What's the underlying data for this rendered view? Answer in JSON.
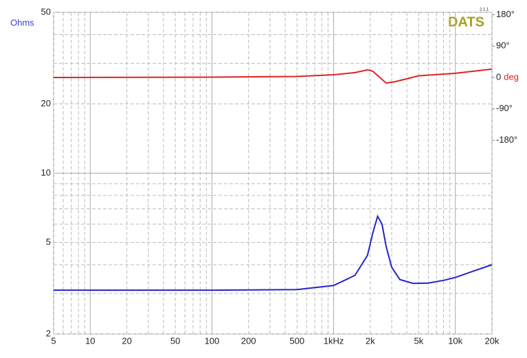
{
  "chart_data": {
    "type": "line",
    "brand": "DATS",
    "version": "2.1.1",
    "ylabel": "Ohms",
    "y2label": "deg",
    "xscale": "log",
    "yscale": "log",
    "grid": true,
    "xlim": [
      5,
      20000
    ],
    "ylim": [
      2,
      50
    ],
    "y2lim": [
      -736,
      187
    ],
    "xticks": [
      5,
      10,
      20,
      50,
      100,
      200,
      500,
      {
        "value": 1000,
        "label": "1kHz"
      },
      {
        "value": 2000,
        "label": "2k"
      },
      {
        "value": 5000,
        "label": "5k"
      },
      {
        "value": 10000,
        "label": "10k"
      },
      {
        "value": 20000,
        "label": "20k"
      }
    ],
    "xminor": [
      6,
      7,
      8,
      9,
      30,
      40,
      60,
      70,
      80,
      90,
      300,
      400,
      600,
      700,
      800,
      900,
      3000,
      4000,
      6000,
      7000,
      8000,
      9000
    ],
    "yticks": [
      2,
      5,
      10,
      20,
      50
    ],
    "yminor": [
      3,
      4,
      6,
      7,
      8,
      9,
      30,
      40
    ],
    "y2ticks": [
      {
        "value": 180,
        "label": "180°"
      },
      {
        "value": 90,
        "label": "90°"
      },
      0,
      {
        "value": -90,
        "label": "-90°"
      },
      {
        "value": -180,
        "label": "-180°"
      }
    ],
    "series": [
      {
        "color": "#2222cc",
        "axis": "y",
        "x": [
          5,
          20,
          100,
          500,
          1000,
          1500,
          1900,
          2100,
          2300,
          2500,
          2700,
          3000,
          3500,
          4500,
          6000,
          8000,
          10000,
          14000,
          20000
        ],
        "values": [
          3.1,
          3.1,
          3.1,
          3.12,
          3.25,
          3.6,
          4.4,
          5.5,
          6.5,
          6.0,
          4.8,
          3.9,
          3.45,
          3.32,
          3.33,
          3.42,
          3.52,
          3.75,
          4.0
        ]
      },
      {
        "color": "#dd2222",
        "axis": "y2",
        "x": [
          5,
          100,
          500,
          1000,
          1500,
          1900,
          2100,
          2400,
          2700,
          3200,
          5000,
          10000,
          20000
        ],
        "values": [
          0,
          1,
          3,
          8,
          14,
          22,
          18,
          0,
          -16,
          -12,
          5,
          12,
          24
        ]
      }
    ]
  }
}
